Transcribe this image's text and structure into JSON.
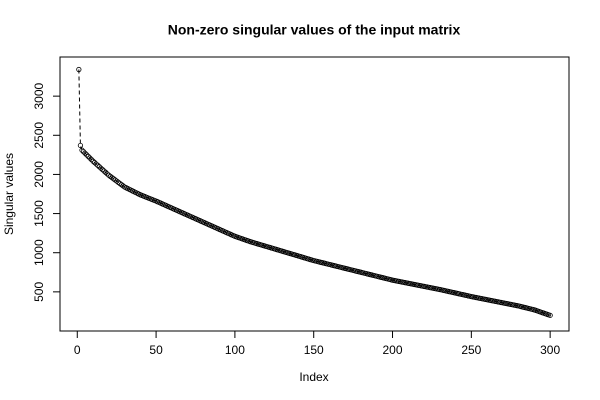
{
  "chart_data": {
    "type": "scatter",
    "title": "Non-zero singular values of the input matrix",
    "x_label": "Index",
    "y_label": "Singular values",
    "x": [
      1,
      2,
      3,
      4,
      5,
      6,
      7,
      8,
      9,
      10,
      11,
      12,
      13,
      14,
      15,
      16,
      17,
      18,
      19,
      20,
      21,
      22,
      23,
      24,
      25,
      26,
      27,
      28,
      29,
      30,
      31,
      32,
      33,
      34,
      35,
      36,
      37,
      38,
      39,
      40,
      41,
      42,
      43,
      44,
      45,
      46,
      47,
      48,
      49,
      50,
      51,
      52,
      53,
      54,
      55,
      56,
      57,
      58,
      59,
      60,
      61,
      62,
      63,
      64,
      65,
      66,
      67,
      68,
      69,
      70,
      71,
      72,
      73,
      74,
      75,
      76,
      77,
      78,
      79,
      80,
      81,
      82,
      83,
      84,
      85,
      86,
      87,
      88,
      89,
      90,
      91,
      92,
      93,
      94,
      95,
      96,
      97,
      98,
      99,
      100,
      101,
      102,
      103,
      104,
      105,
      106,
      107,
      108,
      109,
      110,
      111,
      112,
      113,
      114,
      115,
      116,
      117,
      118,
      119,
      120,
      121,
      122,
      123,
      124,
      125,
      126,
      127,
      128,
      129,
      130,
      131,
      132,
      133,
      134,
      135,
      136,
      137,
      138,
      139,
      140,
      141,
      142,
      143,
      144,
      145,
      146,
      147,
      148,
      149,
      150,
      151,
      152,
      153,
      154,
      155,
      156,
      157,
      158,
      159,
      160,
      161,
      162,
      163,
      164,
      165,
      166,
      167,
      168,
      169,
      170,
      171,
      172,
      173,
      174,
      175,
      176,
      177,
      178,
      179,
      180,
      181,
      182,
      183,
      184,
      185,
      186,
      187,
      188,
      189,
      190,
      191,
      192,
      193,
      194,
      195,
      196,
      197,
      198,
      199,
      200,
      201,
      202,
      203,
      204,
      205,
      206,
      207,
      208,
      209,
      210,
      211,
      212,
      213,
      214,
      215,
      216,
      217,
      218,
      219,
      220,
      221,
      222,
      223,
      224,
      225,
      226,
      227,
      228,
      229,
      230,
      231,
      232,
      233,
      234,
      235,
      236,
      237,
      238,
      239,
      240,
      241,
      242,
      243,
      244,
      245,
      246,
      247,
      248,
      249,
      250,
      251,
      252,
      253,
      254,
      255,
      256,
      257,
      258,
      259,
      260,
      261,
      262,
      263,
      264,
      265,
      266,
      267,
      268,
      269,
      270,
      271,
      272,
      273,
      274,
      275,
      276,
      277,
      278,
      279,
      280,
      281,
      282,
      283,
      284,
      285,
      286,
      287,
      288,
      289,
      290,
      291,
      292,
      293,
      294,
      295,
      296,
      297,
      298,
      299,
      300
    ],
    "values": [
      3340,
      2370,
      2310,
      2290,
      2270,
      2250,
      2230,
      2210,
      2190,
      2170,
      2152,
      2134,
      2116,
      2098,
      2080,
      2062,
      2044,
      2026,
      2008,
      1990,
      1975,
      1960,
      1945,
      1930,
      1915,
      1900,
      1885,
      1870,
      1855,
      1840,
      1830,
      1820,
      1810,
      1800,
      1790,
      1780,
      1770,
      1760,
      1750,
      1740,
      1732,
      1724,
      1716,
      1708,
      1700,
      1692,
      1684,
      1676,
      1668,
      1660,
      1651,
      1642,
      1633,
      1624,
      1615,
      1606,
      1597,
      1588,
      1579,
      1570,
      1561,
      1552,
      1543,
      1534,
      1525,
      1516,
      1507,
      1498,
      1489,
      1480,
      1471,
      1462,
      1453,
      1444,
      1435,
      1426,
      1417,
      1408,
      1399,
      1390,
      1381,
      1372,
      1363,
      1354,
      1345,
      1336,
      1327,
      1318,
      1309,
      1300,
      1291,
      1282,
      1273,
      1264,
      1255,
      1246,
      1237,
      1228,
      1219,
      1210,
      1203,
      1196,
      1189,
      1182,
      1175,
      1168,
      1161,
      1154,
      1147,
      1140,
      1134,
      1128,
      1122,
      1116,
      1110,
      1104,
      1098,
      1092,
      1086,
      1080,
      1074,
      1068,
      1062,
      1056,
      1050,
      1044,
      1038,
      1032,
      1026,
      1020,
      1014,
      1008,
      1002,
      996,
      990,
      984,
      978,
      972,
      966,
      960,
      954,
      948,
      942,
      936,
      930,
      924,
      918,
      912,
      906,
      900,
      895,
      890,
      885,
      880,
      875,
      870,
      865,
      860,
      855,
      850,
      845,
      840,
      835,
      830,
      825,
      820,
      815,
      810,
      805,
      800,
      795,
      790,
      785,
      780,
      775,
      770,
      765,
      760,
      755,
      750,
      745,
      740,
      735,
      730,
      725,
      720,
      715,
      710,
      705,
      700,
      695,
      690,
      685,
      680,
      675,
      670,
      665,
      660,
      655,
      650,
      646,
      642,
      638,
      634,
      630,
      626,
      622,
      618,
      614,
      610,
      606,
      602,
      598,
      594,
      590,
      586,
      582,
      578,
      574,
      570,
      566,
      562,
      558,
      554,
      550,
      546,
      542,
      538,
      534,
      530,
      526,
      521,
      517,
      512,
      508,
      503,
      499,
      494,
      490,
      485,
      481,
      476,
      472,
      467,
      463,
      458,
      454,
      449,
      445,
      440,
      436,
      432,
      428,
      424,
      420,
      416,
      412,
      408,
      404,
      400,
      396,
      392,
      388,
      384,
      380,
      376,
      372,
      368,
      364,
      360,
      356,
      352,
      348,
      344,
      340,
      336,
      332,
      328,
      324,
      320,
      315,
      310,
      305,
      300,
      295,
      290,
      285,
      280,
      275,
      270,
      263,
      256,
      249,
      242,
      235,
      228,
      221,
      214,
      207,
      200
    ],
    "color": "#000000",
    "line_style": "dashed",
    "xlim": [
      -10.96,
      311.96
    ],
    "xticks": [
      0,
      50,
      100,
      150,
      200,
      250,
      300
    ],
    "ylim": [
      0,
      3500
    ],
    "yticks": [
      500,
      1000,
      1500,
      2000,
      2500,
      3000
    ],
    "grid": false
  }
}
